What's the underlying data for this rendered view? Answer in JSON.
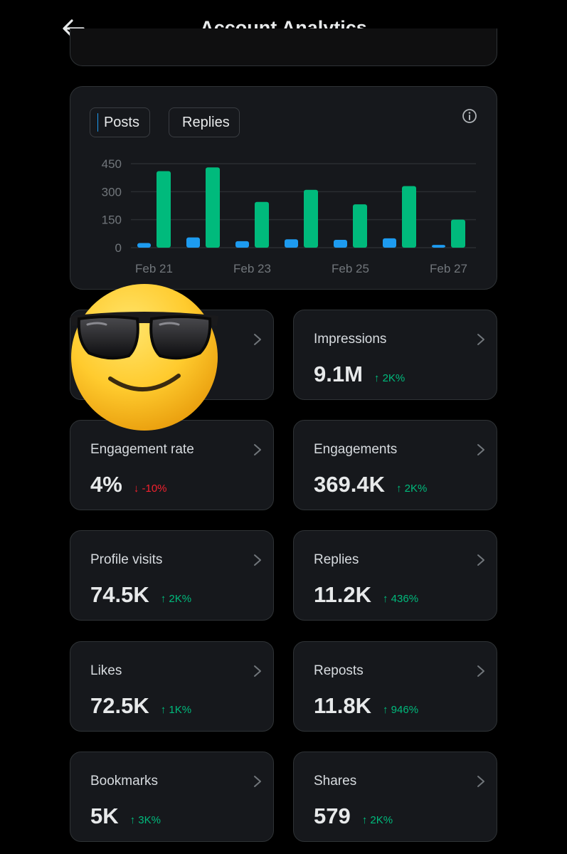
{
  "header": {
    "title": "Account Analytics",
    "back_icon": "arrow-left-icon"
  },
  "colors": {
    "background": "#000000",
    "card": "#16181c",
    "border": "#2f3336",
    "posts": "#1d9bf0",
    "replies": "#00ba7c",
    "up": "#00ba7c",
    "down": "#f4212e"
  },
  "legend": {
    "posts_label": "Posts",
    "replies_label": "Replies"
  },
  "chart_data": {
    "type": "bar",
    "categories": [
      "Feb 21",
      "Feb 22",
      "Feb 23",
      "Feb 24",
      "Feb 25",
      "Feb 26",
      "Feb 27"
    ],
    "x_tick_labels": [
      "Feb 21",
      "Feb 23",
      "Feb 25",
      "Feb 27"
    ],
    "y_ticks": [
      "450",
      "300",
      "150",
      "0"
    ],
    "ylim": [
      0,
      450
    ],
    "grid": true,
    "legend_position": "top-left",
    "series": [
      {
        "name": "Posts",
        "color": "#1d9bf0",
        "values": [
          25,
          55,
          35,
          45,
          42,
          50,
          15
        ]
      },
      {
        "name": "Replies",
        "color": "#00ba7c",
        "values": [
          410,
          430,
          245,
          310,
          232,
          330,
          150
        ]
      }
    ]
  },
  "stats": [
    {
      "label": "",
      "value": "",
      "change": "",
      "direction": "up"
    },
    {
      "label": "Impressions",
      "value": "9.1M",
      "change": "↑ 2K%",
      "direction": "up"
    },
    {
      "label": "Engagement rate",
      "value": "4%",
      "change": "↓ -10%",
      "direction": "down"
    },
    {
      "label": "Engagements",
      "value": "369.4K",
      "change": "↑ 2K%",
      "direction": "up"
    },
    {
      "label": "Profile visits",
      "value": "74.5K",
      "change": "↑ 2K%",
      "direction": "up"
    },
    {
      "label": "Replies",
      "value": "11.2K",
      "change": "↑ 436%",
      "direction": "up"
    },
    {
      "label": "Likes",
      "value": "72.5K",
      "change": "↑ 1K%",
      "direction": "up"
    },
    {
      "label": "Reposts",
      "value": "11.8K",
      "change": "↑ 946%",
      "direction": "up"
    },
    {
      "label": "Bookmarks",
      "value": "5K",
      "change": "↑ 3K%",
      "direction": "up"
    },
    {
      "label": "Shares",
      "value": "579",
      "change": "↑ 2K%",
      "direction": "up"
    }
  ],
  "sticker": {
    "icon": "sunglasses-smiley-icon"
  }
}
